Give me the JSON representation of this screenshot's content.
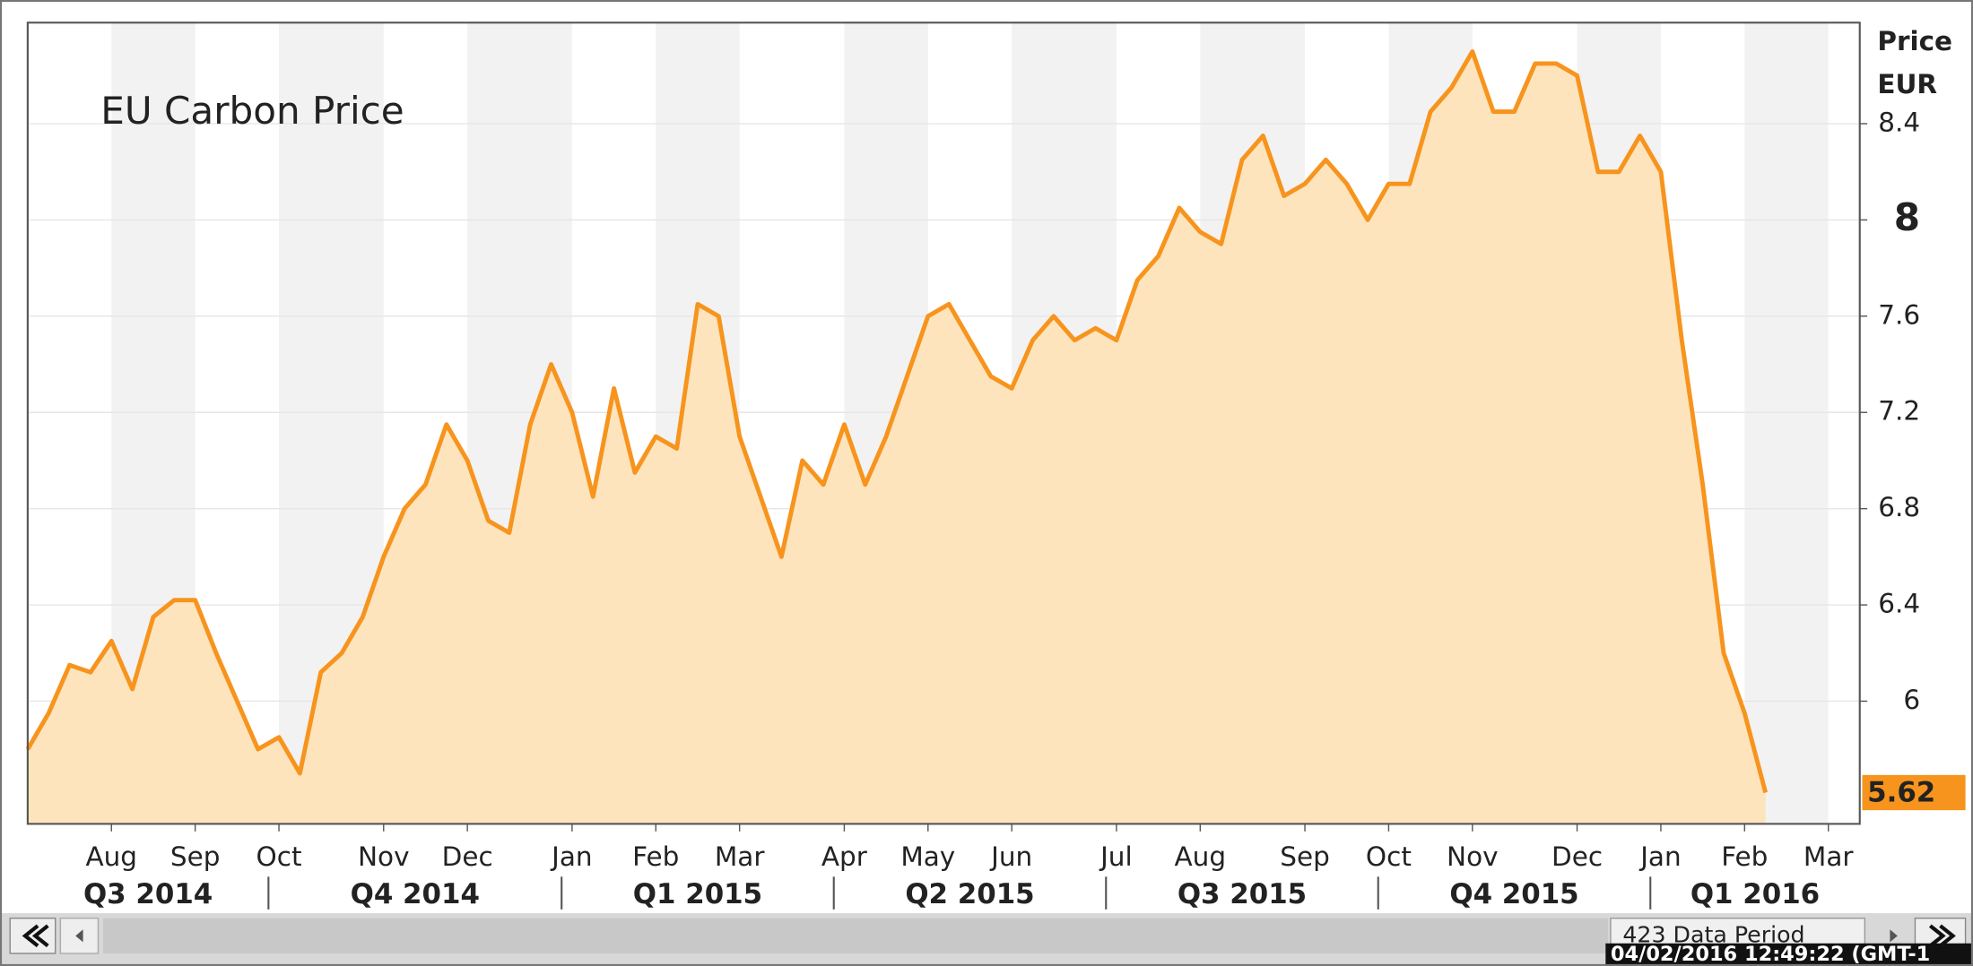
{
  "chart_data": {
    "type": "area",
    "title": "EU Carbon Price",
    "ylabel_lines": [
      "Price",
      "EUR"
    ],
    "categories": [
      null,
      null,
      null,
      null,
      "Aug",
      null,
      null,
      null,
      "Sep",
      null,
      null,
      null,
      "Oct",
      null,
      null,
      null,
      null,
      "Nov",
      null,
      null,
      null,
      "Dec",
      null,
      null,
      null,
      null,
      "Jan",
      null,
      null,
      null,
      "Feb",
      null,
      null,
      null,
      "Mar",
      null,
      null,
      null,
      null,
      "Apr",
      null,
      null,
      null,
      "May",
      null,
      null,
      null,
      "Jun",
      null,
      null,
      null,
      null,
      "Jul",
      null,
      null,
      null,
      "Aug",
      null,
      null,
      null,
      null,
      "Sep",
      null,
      null,
      null,
      "Oct",
      null,
      null,
      null,
      "Nov",
      null,
      null,
      null,
      null,
      "Dec",
      null,
      null,
      null,
      "Jan",
      null,
      null,
      null,
      "Feb",
      null,
      null,
      null,
      "Mar",
      null
    ],
    "quarters": [
      "Q3 2014",
      "Q4 2014",
      "Q1 2015",
      "Q2 2015",
      "Q3 2015",
      "Q4 2015",
      "Q1 2016"
    ],
    "values": [
      5.8,
      5.95,
      6.15,
      6.12,
      6.25,
      6.05,
      6.35,
      6.42,
      6.42,
      6.2,
      6.0,
      5.8,
      5.85,
      5.7,
      6.12,
      6.2,
      6.35,
      6.6,
      6.8,
      6.9,
      7.15,
      7.0,
      6.75,
      6.7,
      7.15,
      7.4,
      7.2,
      6.85,
      7.3,
      6.95,
      7.1,
      7.05,
      7.65,
      7.6,
      7.1,
      6.85,
      6.6,
      7.0,
      6.9,
      7.15,
      6.9,
      7.1,
      7.35,
      7.6,
      7.65,
      7.5,
      7.35,
      7.3,
      7.5,
      7.6,
      7.5,
      7.55,
      7.5,
      7.75,
      7.85,
      8.05,
      7.95,
      7.9,
      8.25,
      8.35,
      8.1,
      8.15,
      8.25,
      8.15,
      8.0,
      8.15,
      8.15,
      8.45,
      8.55,
      8.7,
      8.45,
      8.45,
      8.65,
      8.65,
      8.6,
      8.2,
      8.2,
      8.35,
      8.2,
      7.5,
      6.9,
      6.2,
      5.95,
      5.62,
      null,
      null,
      null,
      null
    ],
    "color": "#f7941d",
    "fill": "#fde4bd",
    "ylim": [
      5.49,
      8.82
    ],
    "yticks": [
      6,
      6.4,
      6.8,
      7.2,
      7.6,
      8,
      8.4
    ],
    "grid": true,
    "footer": {
      "period": "423 Data Period",
      "timestamp": "04/02/2016 12:49:22 (GMT-1"
    }
  }
}
